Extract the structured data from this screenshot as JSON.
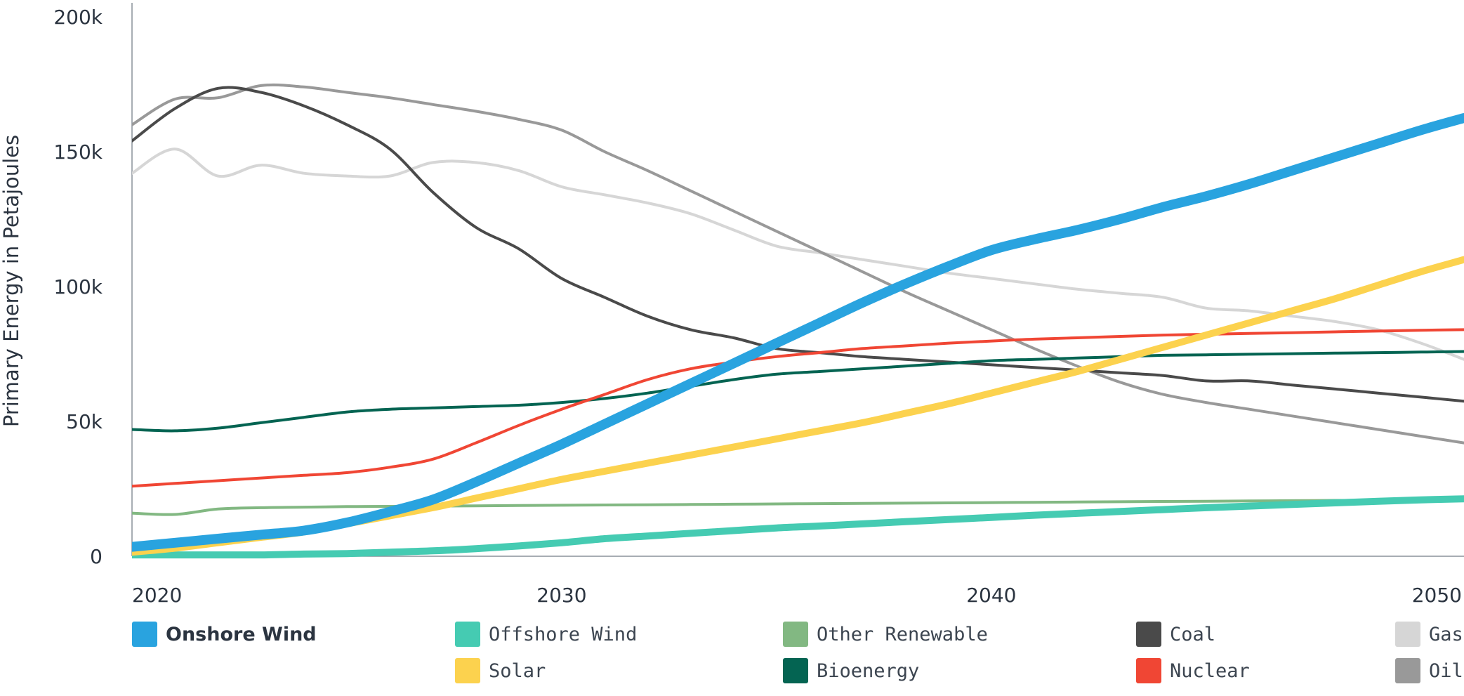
{
  "chart_data": {
    "type": "line",
    "ylabel": "Primary Energy in Petajoules",
    "xlabel": "",
    "xlim": [
      2020,
      2051
    ],
    "ylim": [
      0,
      200000
    ],
    "x_ticks": [
      2020,
      2030,
      2040,
      2050
    ],
    "x_tick_labels": [
      "2020",
      "2030",
      "2040",
      "2050"
    ],
    "y_ticks": [
      0,
      50000,
      100000,
      150000,
      200000
    ],
    "y_tick_labels": [
      "0",
      "50k",
      "100k",
      "150k",
      "200k"
    ],
    "grid": false,
    "legend_position": "bottom",
    "highlighted_series": "Onshore Wind",
    "x": [
      2020,
      2021,
      2022,
      2023,
      2024,
      2025,
      2026,
      2027,
      2028,
      2029,
      2030,
      2031,
      2032,
      2033,
      2034,
      2035,
      2036,
      2037,
      2038,
      2039,
      2040,
      2041,
      2042,
      2043,
      2044,
      2045,
      2046,
      2047,
      2048,
      2049,
      2050,
      2051
    ],
    "series": [
      {
        "name": "Onshore Wind",
        "color": "#29a3df",
        "width": 14,
        "values": [
          3500,
          5000,
          6500,
          8000,
          9500,
          12500,
          16500,
          21000,
          27500,
          34500,
          41500,
          49000,
          56500,
          64000,
          71500,
          79000,
          86500,
          94000,
          101000,
          107500,
          113500,
          117500,
          121000,
          125000,
          129500,
          133500,
          138000,
          143000,
          148000,
          153000,
          158000,
          162500
        ]
      },
      {
        "name": "Offshore Wind",
        "color": "#45cbb2",
        "width": 10,
        "values": [
          500,
          500,
          500,
          500,
          800,
          1000,
          1500,
          2000,
          2800,
          3800,
          5000,
          6500,
          7500,
          8500,
          9500,
          10500,
          11200,
          12000,
          12800,
          13600,
          14400,
          15200,
          15900,
          16600,
          17300,
          18000,
          18600,
          19200,
          19800,
          20400,
          20900,
          21300
        ]
      },
      {
        "name": "Other Renewable",
        "color": "#82b882",
        "width": 4,
        "values": [
          16000,
          15500,
          17500,
          18000,
          18200,
          18400,
          18500,
          18600,
          18700,
          18800,
          18900,
          19000,
          19100,
          19200,
          19300,
          19400,
          19500,
          19600,
          19700,
          19800,
          19900,
          20000,
          20100,
          20200,
          20300,
          20400,
          20500,
          20600,
          20700,
          20800,
          20900,
          21000
        ]
      },
      {
        "name": "Coal",
        "color": "#4a4a4a",
        "width": 4,
        "values": [
          154000,
          166000,
          173500,
          172000,
          167000,
          160000,
          151000,
          135000,
          122000,
          114000,
          103000,
          96000,
          89000,
          84000,
          81000,
          77000,
          75500,
          74000,
          73000,
          72000,
          71000,
          70000,
          69000,
          68000,
          67000,
          65000,
          65000,
          63500,
          62000,
          60500,
          59000,
          57500
        ]
      },
      {
        "name": "Gas",
        "color": "#d6d6d6",
        "width": 4,
        "values": [
          142000,
          151000,
          141000,
          145000,
          142000,
          141000,
          141000,
          146000,
          146000,
          143000,
          137000,
          134000,
          131000,
          127000,
          121000,
          115000,
          112500,
          110000,
          107500,
          105000,
          103000,
          101000,
          99000,
          97500,
          96000,
          92000,
          91000,
          89000,
          87000,
          84000,
          79000,
          73000
        ]
      },
      {
        "name": "Solar",
        "color": "#fcd24e",
        "width": 10,
        "values": [
          1500,
          3000,
          5000,
          7000,
          9000,
          12000,
          15000,
          18000,
          21500,
          25000,
          28500,
          31500,
          34500,
          37500,
          40500,
          43500,
          46500,
          49500,
          53000,
          56500,
          60500,
          64500,
          68500,
          73000,
          77500,
          82000,
          86500,
          91000,
          95500,
          100500,
          105500,
          110000
        ]
      },
      {
        "name": "Bioenergy",
        "color": "#046452",
        "width": 4,
        "values": [
          47000,
          46500,
          47500,
          49500,
          51500,
          53500,
          54500,
          55000,
          55500,
          56000,
          57000,
          58500,
          60500,
          63000,
          65500,
          67500,
          68500,
          69500,
          70500,
          71500,
          72500,
          73000,
          73500,
          74000,
          74500,
          74700,
          74900,
          75100,
          75300,
          75500,
          75700,
          75900
        ]
      },
      {
        "name": "Nuclear",
        "color": "#f04634",
        "width": 4,
        "values": [
          26000,
          27000,
          28000,
          29000,
          30000,
          31000,
          33000,
          36000,
          42000,
          48500,
          54500,
          60000,
          65500,
          69500,
          72000,
          74000,
          75500,
          77000,
          78000,
          79000,
          79800,
          80500,
          81000,
          81500,
          82000,
          82300,
          82600,
          82900,
          83200,
          83500,
          83800,
          84000
        ]
      },
      {
        "name": "Oil",
        "color": "#999999",
        "width": 4,
        "values": [
          160000,
          169500,
          170000,
          174500,
          174000,
          172000,
          170000,
          167500,
          165000,
          162000,
          158000,
          150000,
          143000,
          135500,
          128000,
          120500,
          113000,
          105500,
          98000,
          91000,
          84000,
          77000,
          70500,
          64500,
          60000,
          57000,
          54500,
          52000,
          49500,
          47000,
          44500,
          42000
        ]
      }
    ],
    "legend": [
      {
        "label": "Onshore Wind",
        "color": "#29a3df"
      },
      {
        "label": "Offshore Wind",
        "color": "#45cbb2"
      },
      {
        "label": "Other Renewable",
        "color": "#82b882"
      },
      {
        "label": "Coal",
        "color": "#4a4a4a"
      },
      {
        "label": "Gas",
        "color": "#d6d6d6"
      },
      {
        "label": "Solar",
        "color": "#fcd24e"
      },
      {
        "label": "Bioenergy",
        "color": "#046452"
      },
      {
        "label": "Nuclear",
        "color": "#f04634"
      },
      {
        "label": "Oil",
        "color": "#999999"
      }
    ]
  }
}
